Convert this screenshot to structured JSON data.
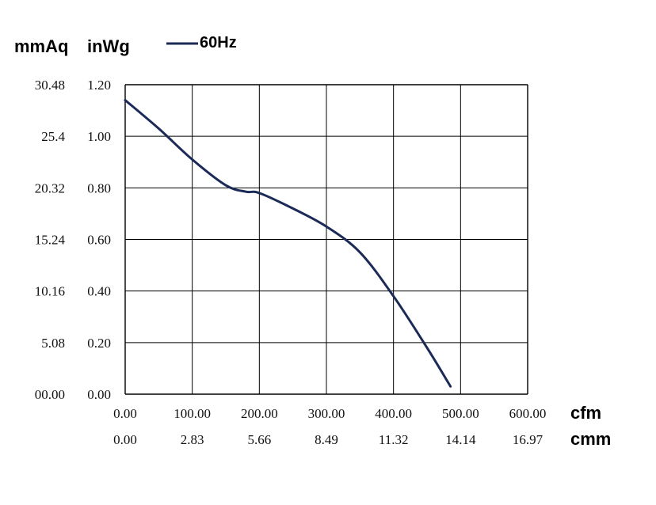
{
  "header": {
    "left_unit_label": "mmAq",
    "right_unit_label": "inWg"
  },
  "legend": {
    "entries": [
      "60Hz"
    ]
  },
  "axes": {
    "x_primary_unit": "cfm",
    "x_secondary_unit": "cmm",
    "x_primary_ticks": [
      "0.00",
      "100.00",
      "200.00",
      "300.00",
      "400.00",
      "500.00",
      "600.00"
    ],
    "x_secondary_ticks": [
      "0.00",
      "2.83",
      "5.66",
      "8.49",
      "11.32",
      "14.14",
      "16.97"
    ],
    "y_inwg_ticks": [
      "0.00",
      "0.20",
      "0.40",
      "0.60",
      "0.80",
      "1.00",
      "1.20"
    ],
    "y_mmaq_ticks": [
      "00.00",
      "5.08",
      "10.16",
      "15.24",
      "20.32",
      "25.4",
      "30.48"
    ]
  },
  "chart_data": {
    "type": "line",
    "xlabel": "cfm",
    "ylabel": "inWg",
    "xlim": [
      0,
      600
    ],
    "ylim": [
      0,
      1.2
    ],
    "grid": true,
    "legend_position": "top-left",
    "series": [
      {
        "name": "60Hz",
        "color": "#1b2a57",
        "x": [
          0,
          50,
          100,
          150,
          180,
          200,
          250,
          300,
          350,
          400,
          450,
          485
        ],
        "y": [
          1.14,
          1.03,
          0.91,
          0.81,
          0.785,
          0.78,
          0.72,
          0.65,
          0.55,
          0.38,
          0.18,
          0.03
        ]
      }
    ]
  }
}
